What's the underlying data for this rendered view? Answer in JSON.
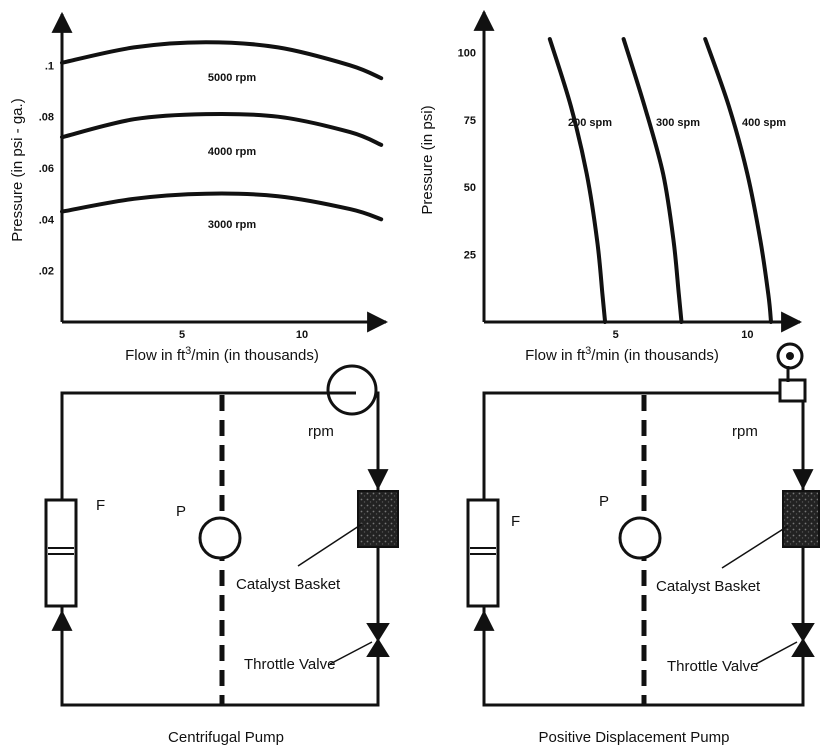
{
  "chart_data": [
    {
      "type": "line",
      "xlabel": "Flow in ft³/min (in thousands)",
      "ylabel": "Pressure (in psi - ga.)",
      "xlim": [
        0,
        13.5
      ],
      "ylim": [
        0,
        0.12
      ],
      "xticks": [
        5,
        10
      ],
      "xtick_labels": [
        "5",
        "10"
      ],
      "yticks": [
        0.02,
        0.04,
        0.06,
        0.08,
        0.1
      ],
      "ytick_labels": [
        ".02",
        ".04",
        ".06",
        ".08",
        ".1"
      ],
      "series": [
        {
          "name": "3000 rpm",
          "x": [
            0,
            3,
            6,
            9,
            12,
            13.3
          ],
          "y": [
            0.043,
            0.048,
            0.05,
            0.049,
            0.044,
            0.04
          ]
        },
        {
          "name": "4000 rpm",
          "x": [
            0,
            3,
            6,
            9,
            12,
            13.3
          ],
          "y": [
            0.072,
            0.079,
            0.081,
            0.08,
            0.074,
            0.069
          ]
        },
        {
          "name": "5000 rpm",
          "x": [
            0,
            3,
            6,
            9,
            12,
            13.3
          ],
          "y": [
            0.101,
            0.107,
            0.109,
            0.107,
            0.1,
            0.095
          ]
        }
      ]
    },
    {
      "type": "line",
      "xlabel": "Flow in ft³/min (in thousands)",
      "ylabel": "Pressure (in psi)",
      "xlim": [
        0,
        12
      ],
      "ylim": [
        0,
        115
      ],
      "xticks": [
        5,
        10
      ],
      "xtick_labels": [
        "5",
        "10"
      ],
      "yticks": [
        25,
        50,
        75,
        100
      ],
      "ytick_labels": [
        "25",
        "50",
        "75",
        "100"
      ],
      "series": [
        {
          "name": "200 spm",
          "x": [
            2.5,
            3.3,
            3.9,
            4.3,
            4.5,
            4.6
          ],
          "y": [
            105,
            80,
            55,
            30,
            10,
            0
          ]
        },
        {
          "name": "300 spm",
          "x": [
            5.3,
            6.1,
            6.8,
            7.2,
            7.4,
            7.5
          ],
          "y": [
            105,
            80,
            55,
            30,
            10,
            0
          ]
        },
        {
          "name": "400 spm",
          "x": [
            8.4,
            9.3,
            10.0,
            10.5,
            10.8,
            10.9
          ],
          "y": [
            105,
            80,
            55,
            30,
            10,
            0
          ]
        }
      ]
    }
  ],
  "diagrams": [
    {
      "flowmeter_label": "F",
      "pressure_label": "P",
      "speed_label": "rpm",
      "basket_label": "Catalyst Basket",
      "valve_label": "Throttle Valve",
      "caption": "Centrifugal Pump"
    },
    {
      "flowmeter_label": "F",
      "pressure_label": "P",
      "speed_label": "rpm",
      "basket_label": "Catalyst Basket",
      "valve_label": "Throttle Valve",
      "caption": "Positive Displacement Pump"
    }
  ]
}
